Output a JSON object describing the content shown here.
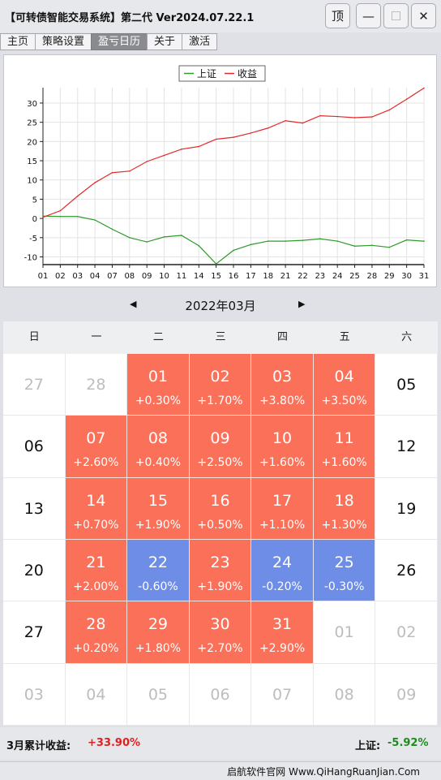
{
  "window": {
    "title": "【可转债智能交易系统】第二代 Ver2024.07.22.1",
    "buttons": [
      {
        "name": "pin-top-button",
        "label": "顶",
        "enabled": true
      },
      {
        "name": "minimize-button",
        "label": "—",
        "enabled": true
      },
      {
        "name": "maximize-button",
        "label": "☐",
        "enabled": false
      },
      {
        "name": "close-button",
        "label": "✕",
        "enabled": true
      }
    ]
  },
  "tabs": [
    {
      "label": "主页",
      "active": false
    },
    {
      "label": "策略设置",
      "active": false
    },
    {
      "label": "盈亏日历",
      "active": true
    },
    {
      "label": "关于",
      "active": false
    },
    {
      "label": "激活",
      "active": false
    }
  ],
  "chart_data": {
    "type": "line",
    "legend_position": "top-center",
    "grid": true,
    "ylim": [
      -12,
      34
    ],
    "yticks": [
      -10,
      -5,
      0,
      5,
      10,
      15,
      20,
      25,
      30
    ],
    "x": [
      "01",
      "02",
      "03",
      "04",
      "07",
      "08",
      "09",
      "10",
      "11",
      "14",
      "15",
      "16",
      "17",
      "18",
      "21",
      "22",
      "23",
      "24",
      "25",
      "28",
      "29",
      "30",
      "31"
    ],
    "series": [
      {
        "name": "上证",
        "color": "#2e9b2e",
        "values": [
          0.6,
          0.5,
          0.5,
          -0.4,
          -2.8,
          -5.0,
          -6.1,
          -4.8,
          -4.4,
          -7.1,
          -11.8,
          -8.3,
          -6.8,
          -5.9,
          -5.9,
          -5.7,
          -5.3,
          -5.9,
          -7.2,
          -7.0,
          -7.5,
          -5.6,
          -5.9
        ]
      },
      {
        "name": "收益",
        "color": "#e32a2a",
        "values": [
          0.3,
          2.0,
          5.8,
          9.3,
          11.9,
          12.3,
          14.8,
          16.4,
          18.0,
          18.7,
          20.6,
          21.1,
          22.2,
          23.5,
          25.4,
          24.8,
          26.7,
          26.5,
          26.2,
          26.4,
          28.2,
          31.0,
          33.9
        ]
      }
    ]
  },
  "calendar": {
    "month_label": "2022年03月",
    "prev_label": "◀",
    "next_label": "▶",
    "weekdays": [
      "日",
      "一",
      "二",
      "三",
      "四",
      "五",
      "六"
    ],
    "weeks": [
      [
        {
          "day": "27",
          "type": "other"
        },
        {
          "day": "28",
          "type": "other"
        },
        {
          "day": "01",
          "type": "up",
          "pct": "+0.30%"
        },
        {
          "day": "02",
          "type": "up",
          "pct": "+1.70%"
        },
        {
          "day": "03",
          "type": "up",
          "pct": "+3.80%"
        },
        {
          "day": "04",
          "type": "up",
          "pct": "+3.50%"
        },
        {
          "day": "05",
          "type": "plain"
        }
      ],
      [
        {
          "day": "06",
          "type": "plain"
        },
        {
          "day": "07",
          "type": "up",
          "pct": "+2.60%"
        },
        {
          "day": "08",
          "type": "up",
          "pct": "+0.40%"
        },
        {
          "day": "09",
          "type": "up",
          "pct": "+2.50%"
        },
        {
          "day": "10",
          "type": "up",
          "pct": "+1.60%"
        },
        {
          "day": "11",
          "type": "up",
          "pct": "+1.60%"
        },
        {
          "day": "12",
          "type": "plain"
        }
      ],
      [
        {
          "day": "13",
          "type": "plain"
        },
        {
          "day": "14",
          "type": "up",
          "pct": "+0.70%"
        },
        {
          "day": "15",
          "type": "up",
          "pct": "+1.90%"
        },
        {
          "day": "16",
          "type": "up",
          "pct": "+0.50%"
        },
        {
          "day": "17",
          "type": "up",
          "pct": "+1.10%"
        },
        {
          "day": "18",
          "type": "up",
          "pct": "+1.30%"
        },
        {
          "day": "19",
          "type": "plain"
        }
      ],
      [
        {
          "day": "20",
          "type": "plain"
        },
        {
          "day": "21",
          "type": "up",
          "pct": "+2.00%"
        },
        {
          "day": "22",
          "type": "down",
          "pct": "-0.60%"
        },
        {
          "day": "23",
          "type": "up",
          "pct": "+1.90%"
        },
        {
          "day": "24",
          "type": "down",
          "pct": "-0.20%"
        },
        {
          "day": "25",
          "type": "down",
          "pct": "-0.30%"
        },
        {
          "day": "26",
          "type": "plain"
        }
      ],
      [
        {
          "day": "27",
          "type": "plain"
        },
        {
          "day": "28",
          "type": "up",
          "pct": "+0.20%"
        },
        {
          "day": "29",
          "type": "up",
          "pct": "+1.80%"
        },
        {
          "day": "30",
          "type": "up",
          "pct": "+2.70%"
        },
        {
          "day": "31",
          "type": "up",
          "pct": "+2.90%"
        },
        {
          "day": "01",
          "type": "other"
        },
        {
          "day": "02",
          "type": "other"
        }
      ],
      [
        {
          "day": "03",
          "type": "other"
        },
        {
          "day": "04",
          "type": "other"
        },
        {
          "day": "05",
          "type": "other"
        },
        {
          "day": "06",
          "type": "other"
        },
        {
          "day": "07",
          "type": "other"
        },
        {
          "day": "08",
          "type": "other"
        },
        {
          "day": "09",
          "type": "other"
        }
      ]
    ]
  },
  "summary": {
    "month_label": "3月累计收益:",
    "month_value": "+33.90%",
    "month_color": "#e32020",
    "index_label": "上证:",
    "index_value": "-5.92%",
    "index_color": "#1f8a1f"
  },
  "credit": "启航软件官网  Www.QiHangRuanJian.Com"
}
